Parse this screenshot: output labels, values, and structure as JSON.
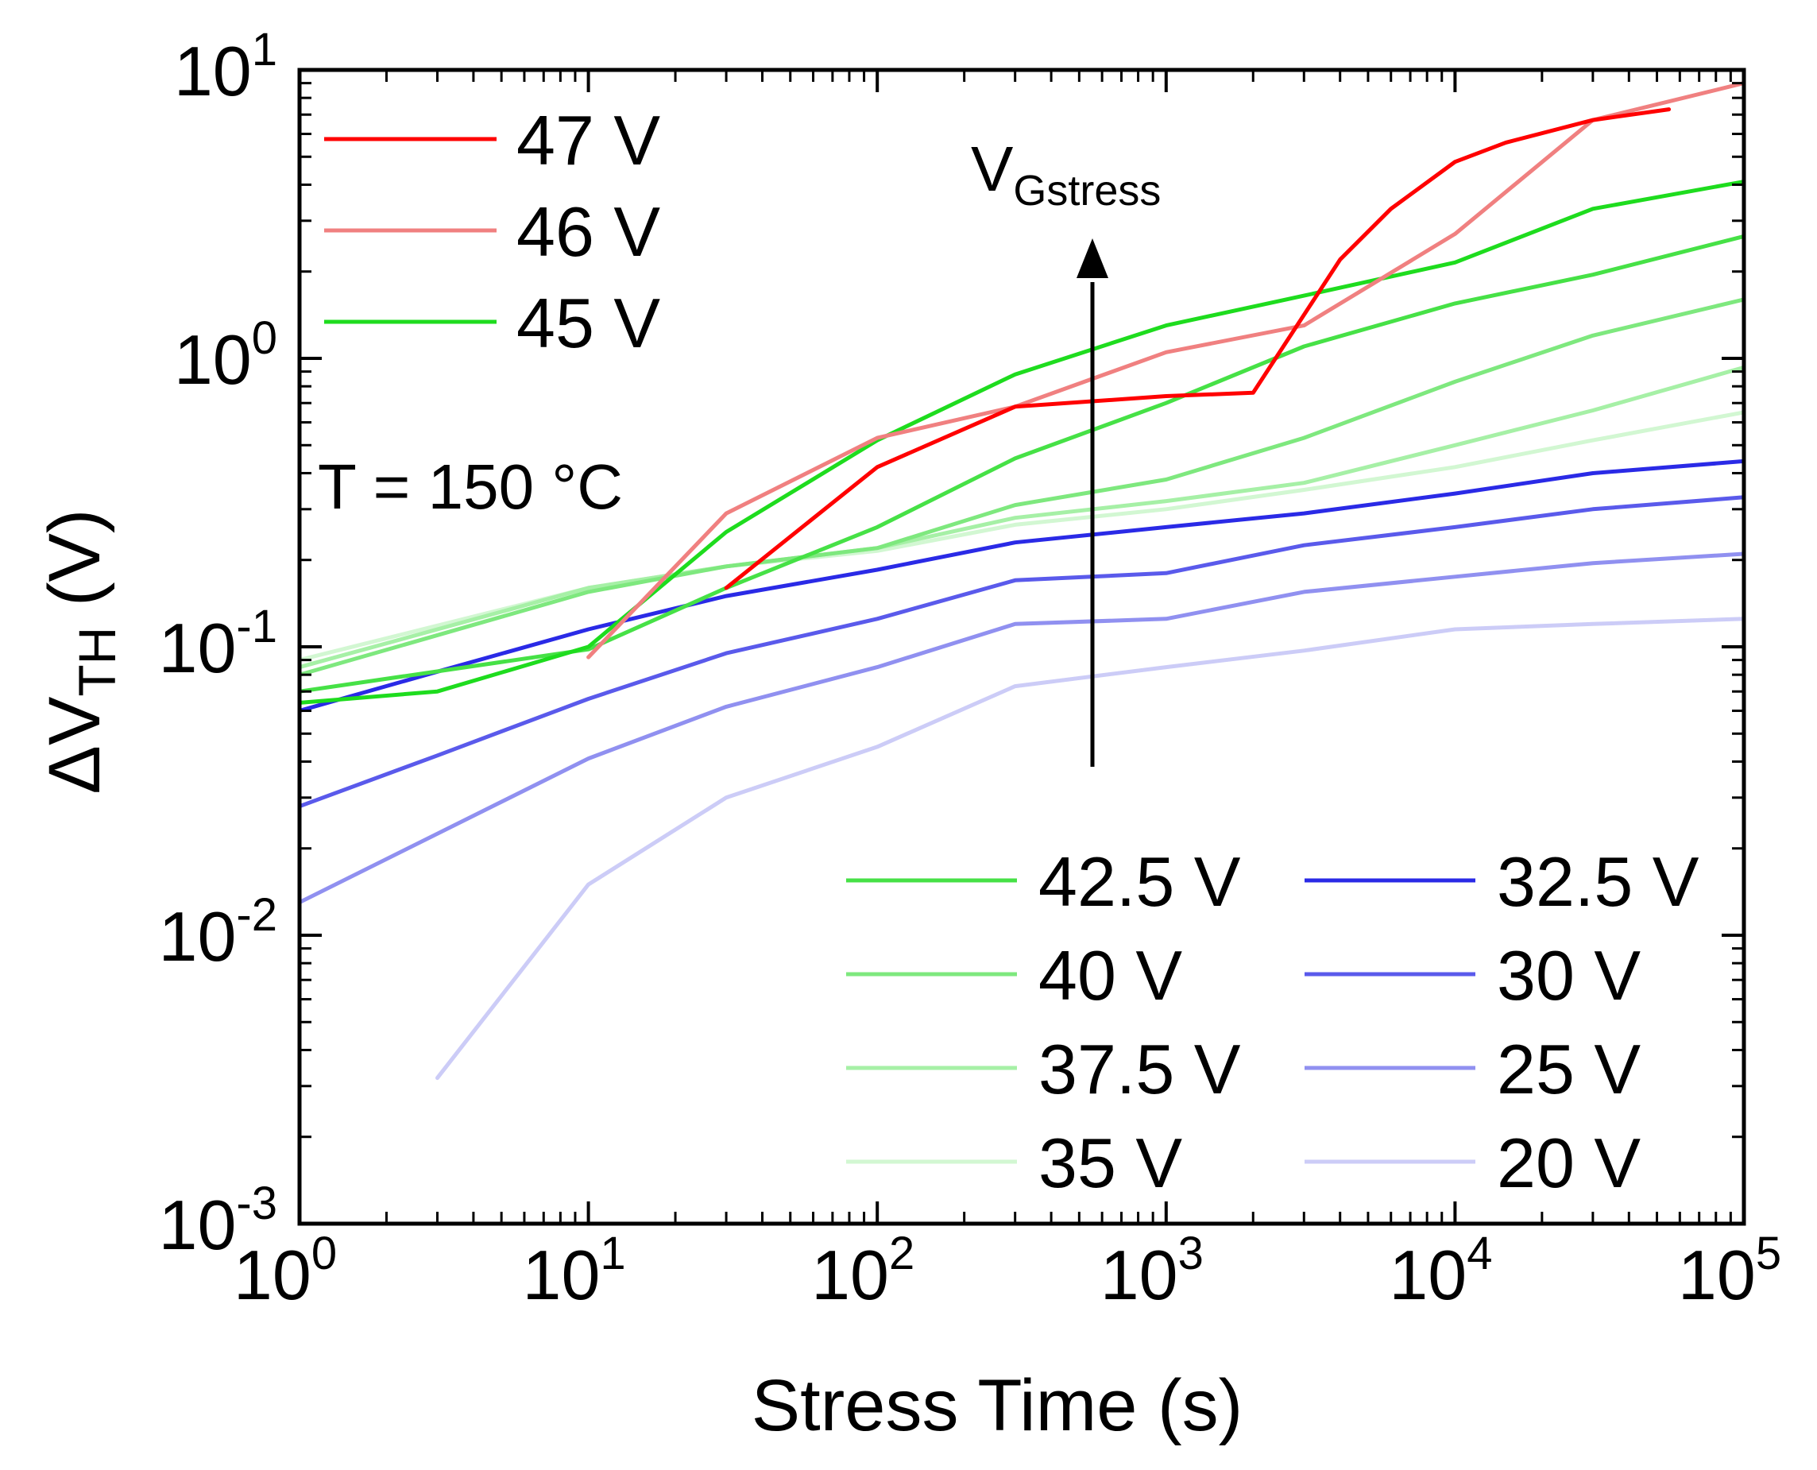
{
  "chart_data": {
    "type": "line",
    "xlabel": "Stress Time (s)",
    "ylabel": {
      "main": "ΔV",
      "sub": "TH",
      "unit": " (V)"
    },
    "x_scale": "log",
    "y_scale": "log",
    "xlim": [
      1,
      100000
    ],
    "ylim": [
      0.001,
      10
    ],
    "x_ticks": [
      {
        "value": 1,
        "base": "10",
        "exp": "0"
      },
      {
        "value": 10,
        "base": "10",
        "exp": "1"
      },
      {
        "value": 100,
        "base": "10",
        "exp": "2"
      },
      {
        "value": 1000,
        "base": "10",
        "exp": "3"
      },
      {
        "value": 10000,
        "base": "10",
        "exp": "4"
      },
      {
        "value": 100000,
        "base": "10",
        "exp": "5"
      }
    ],
    "y_ticks": [
      {
        "value": 0.001,
        "base": "10",
        "exp": "-3"
      },
      {
        "value": 0.01,
        "base": "10",
        "exp": "-2"
      },
      {
        "value": 0.1,
        "base": "10",
        "exp": "-1"
      },
      {
        "value": 1,
        "base": "10",
        "exp": "0"
      },
      {
        "value": 10,
        "base": "10",
        "exp": "1"
      }
    ],
    "annotations": {
      "temperature": "T = 150 °C",
      "arrow_label_main": "V",
      "arrow_label_sub": "Gstress"
    },
    "series": [
      {
        "name": "47 V",
        "color": "#ff0000",
        "legend": "top-left",
        "x": [
          30,
          100,
          300,
          1000,
          2000,
          4000,
          6000,
          10000,
          15000,
          30000,
          55000
        ],
        "y": [
          0.16,
          0.42,
          0.68,
          0.74,
          0.76,
          2.2,
          3.3,
          4.8,
          5.6,
          6.7,
          7.3
        ]
      },
      {
        "name": "46 V",
        "color": "#f08080",
        "legend": "top-left",
        "x": [
          10,
          30,
          100,
          300,
          1000,
          3000,
          10000,
          30000,
          100000
        ],
        "y": [
          0.092,
          0.29,
          0.53,
          0.68,
          1.05,
          1.3,
          2.7,
          6.7,
          9.0
        ]
      },
      {
        "name": "45 V",
        "color": "#1edc1e",
        "legend": "top-left",
        "x": [
          1,
          3,
          10,
          30,
          100,
          300,
          1000,
          3000,
          10000,
          30000,
          100000
        ],
        "y": [
          0.064,
          0.07,
          0.1,
          0.25,
          0.52,
          0.88,
          1.3,
          1.65,
          2.15,
          3.3,
          4.1
        ]
      },
      {
        "name": "42.5 V",
        "color": "#46e146",
        "legend": "bottom-right",
        "x": [
          1,
          10,
          30,
          100,
          300,
          1000,
          3000,
          10000,
          30000,
          100000
        ],
        "y": [
          0.07,
          0.098,
          0.16,
          0.26,
          0.45,
          0.7,
          1.1,
          1.55,
          1.95,
          2.65
        ]
      },
      {
        "name": "40 V",
        "color": "#7ee87e",
        "legend": "bottom-right",
        "x": [
          1,
          10,
          30,
          100,
          300,
          1000,
          3000,
          10000,
          30000,
          100000
        ],
        "y": [
          0.08,
          0.155,
          0.19,
          0.22,
          0.31,
          0.38,
          0.53,
          0.83,
          1.2,
          1.6
        ]
      },
      {
        "name": "37.5 V",
        "color": "#a6f0a6",
        "legend": "bottom-right",
        "x": [
          1,
          10,
          30,
          100,
          300,
          1000,
          3000,
          10000,
          30000,
          100000
        ],
        "y": [
          0.085,
          0.16,
          0.19,
          0.22,
          0.28,
          0.32,
          0.37,
          0.5,
          0.66,
          0.93
        ]
      },
      {
        "name": "35 V",
        "color": "#d2f7d2",
        "legend": "bottom-right",
        "x": [
          1,
          10,
          30,
          100,
          300,
          1000,
          3000,
          10000,
          30000,
          100000
        ],
        "y": [
          0.09,
          0.16,
          0.19,
          0.215,
          0.265,
          0.3,
          0.35,
          0.42,
          0.52,
          0.65
        ]
      },
      {
        "name": "32.5 V",
        "color": "#2a2ae6",
        "legend": "bottom-right",
        "x": [
          1,
          3,
          10,
          30,
          100,
          300,
          1000,
          3000,
          10000,
          30000,
          100000
        ],
        "y": [
          0.06,
          0.082,
          0.115,
          0.15,
          0.185,
          0.23,
          0.26,
          0.29,
          0.34,
          0.4,
          0.44
        ]
      },
      {
        "name": "30 V",
        "color": "#5a5aeb",
        "legend": "bottom-right",
        "x": [
          1,
          3,
          10,
          30,
          100,
          300,
          1000,
          3000,
          10000,
          30000,
          100000
        ],
        "y": [
          0.028,
          0.042,
          0.066,
          0.095,
          0.125,
          0.17,
          0.18,
          0.225,
          0.26,
          0.3,
          0.33
        ]
      },
      {
        "name": "25 V",
        "color": "#9090f0",
        "legend": "bottom-right",
        "x": [
          1,
          10,
          30,
          100,
          300,
          1000,
          3000,
          10000,
          30000,
          100000
        ],
        "y": [
          0.013,
          0.041,
          0.062,
          0.085,
          0.12,
          0.125,
          0.155,
          0.175,
          0.195,
          0.21
        ]
      },
      {
        "name": "20 V",
        "color": "#ccccf7",
        "legend": "bottom-right",
        "x": [
          3,
          10,
          30,
          100,
          300,
          1000,
          3000,
          10000,
          30000,
          100000
        ],
        "y": [
          0.0032,
          0.015,
          0.03,
          0.045,
          0.073,
          0.085,
          0.097,
          0.115,
          0.12,
          0.125
        ]
      }
    ]
  }
}
